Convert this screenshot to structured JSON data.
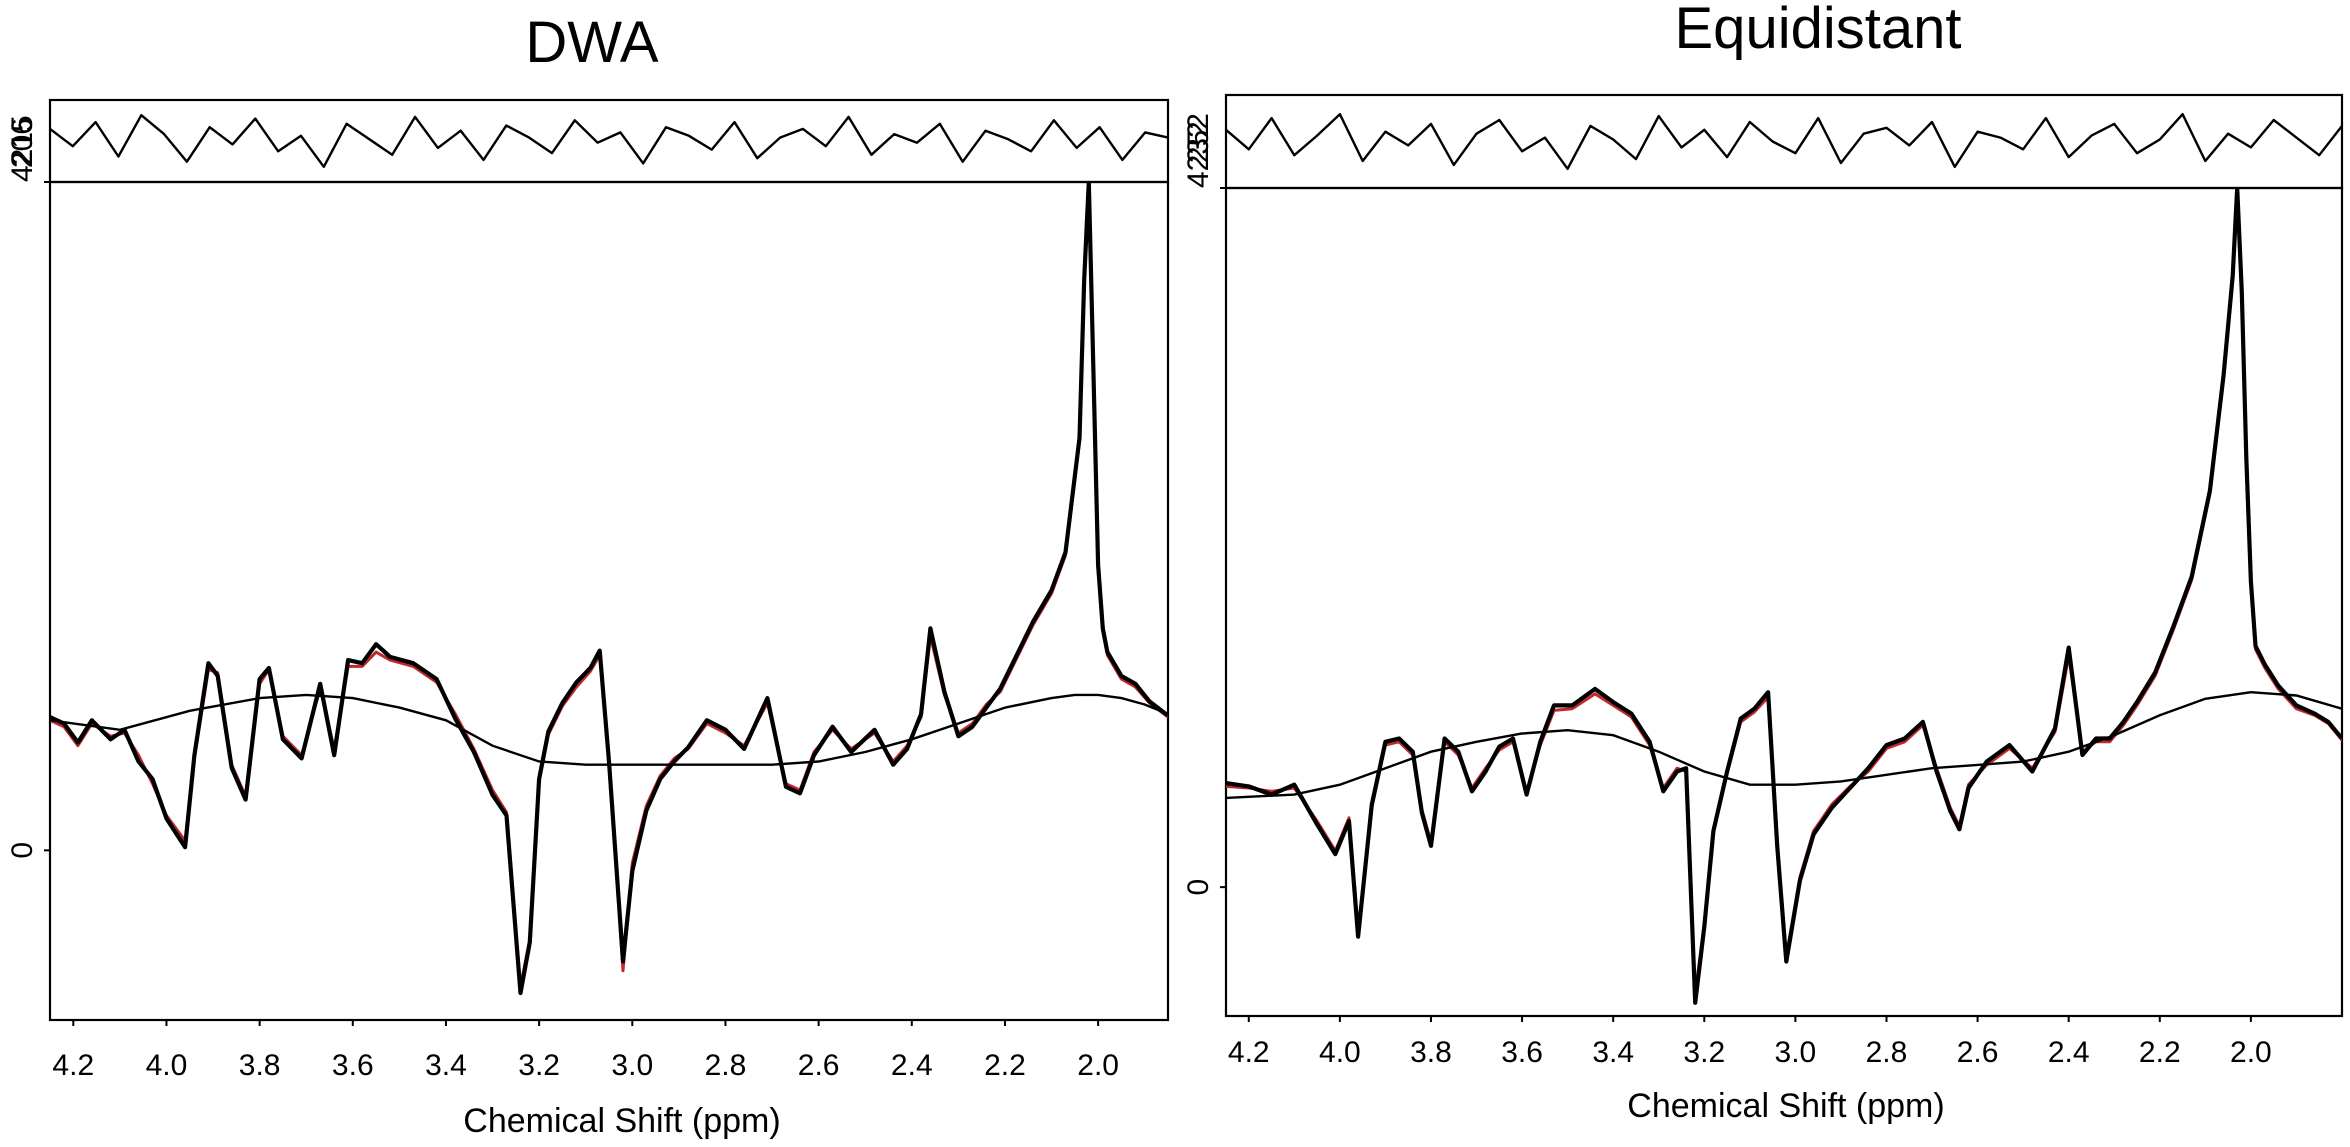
{
  "colors": {
    "background": "#ffffff",
    "data": "#000000",
    "fit": "#c0282d",
    "baseline": "#000000"
  },
  "chart_data": [
    {
      "type": "line",
      "title": "DWA",
      "xlabel": "Chemical Shift (ppm)",
      "xlim": [
        4.25,
        1.85
      ],
      "xticks": [
        4.2,
        4.0,
        3.8,
        3.6,
        3.4,
        3.2,
        3.0,
        2.8,
        2.6,
        2.4,
        2.2,
        2.0
      ],
      "xtick_labels": [
        "4.2",
        "4.0",
        "3.8",
        "3.6",
        "3.4",
        "3.2",
        "3.0",
        "2.8",
        "2.6",
        "2.4",
        "2.2",
        "2.0"
      ],
      "ylim": [
        -1070,
        4215
      ],
      "yticks": [
        0,
        4215
      ],
      "ytick_labels": [
        "0",
        "4215"
      ],
      "residual_tick_label": "206",
      "series": [
        {
          "kind": "spectrum",
          "x": [
            4.25,
            4.22,
            4.19,
            4.16,
            4.12,
            4.09,
            4.06,
            4.03,
            4.0,
            3.96,
            3.94,
            3.91,
            3.89,
            3.86,
            3.83,
            3.8,
            3.78,
            3.75,
            3.71,
            3.67,
            3.64,
            3.61,
            3.58,
            3.55,
            3.52,
            3.47,
            3.42,
            3.38,
            3.34,
            3.3,
            3.27,
            3.24,
            3.22,
            3.2,
            3.18,
            3.15,
            3.12,
            3.09,
            3.07,
            3.05,
            3.02,
            3.0,
            2.97,
            2.94,
            2.91,
            2.88,
            2.84,
            2.8,
            2.76,
            2.71,
            2.67,
            2.64,
            2.61,
            2.57,
            2.53,
            2.48,
            2.44,
            2.41,
            2.38,
            2.36,
            2.33,
            2.3,
            2.27,
            2.24,
            2.21,
            2.18,
            2.14,
            2.1,
            2.07,
            2.04,
            2.03,
            2.02,
            2.01,
            2.0,
            1.99,
            1.98,
            1.95,
            1.92,
            1.89,
            1.85
          ],
          "y": [
            840,
            800,
            680,
            820,
            700,
            760,
            560,
            450,
            200,
            20,
            600,
            1180,
            1100,
            520,
            320,
            1080,
            1150,
            700,
            580,
            1050,
            600,
            1200,
            1180,
            1300,
            1220,
            1180,
            1080,
            830,
            620,
            350,
            220,
            -900,
            -580,
            450,
            750,
            930,
            1060,
            1150,
            1260,
            560,
            -700,
            -130,
            250,
            450,
            560,
            650,
            820,
            760,
            640,
            960,
            400,
            360,
            600,
            780,
            620,
            760,
            540,
            640,
            860,
            1400,
            1000,
            720,
            780,
            900,
            1020,
            1200,
            1440,
            1640,
            1880,
            2600,
            3600,
            4215,
            3000,
            1800,
            1400,
            1250,
            1100,
            1050,
            940,
            850
          ]
        },
        {
          "kind": "fit",
          "x": [
            4.25,
            4.22,
            4.19,
            4.16,
            4.12,
            4.09,
            4.06,
            4.03,
            4.0,
            3.96,
            3.94,
            3.91,
            3.89,
            3.86,
            3.83,
            3.8,
            3.78,
            3.75,
            3.71,
            3.67,
            3.64,
            3.61,
            3.58,
            3.55,
            3.52,
            3.47,
            3.42,
            3.38,
            3.34,
            3.3,
            3.27,
            3.24,
            3.22,
            3.2,
            3.18,
            3.15,
            3.12,
            3.09,
            3.07,
            3.05,
            3.02,
            3.0,
            2.97,
            2.94,
            2.91,
            2.88,
            2.84,
            2.8,
            2.76,
            2.71,
            2.67,
            2.64,
            2.61,
            2.57,
            2.53,
            2.48,
            2.44,
            2.41,
            2.38,
            2.36,
            2.33,
            2.3,
            2.27,
            2.24,
            2.21,
            2.18,
            2.14,
            2.1,
            2.07,
            2.04,
            2.03,
            2.02,
            2.01,
            2.0,
            1.99,
            1.98,
            1.95,
            1.92,
            1.89,
            1.85
          ],
          "y": [
            820,
            780,
            660,
            800,
            720,
            740,
            600,
            420,
            220,
            60,
            580,
            1140,
            1120,
            540,
            340,
            1050,
            1140,
            720,
            600,
            1020,
            640,
            1160,
            1160,
            1250,
            1200,
            1160,
            1060,
            860,
            640,
            380,
            240,
            -860,
            -560,
            430,
            730,
            910,
            1030,
            1130,
            1230,
            580,
            -760,
            -80,
            280,
            470,
            580,
            640,
            800,
            740,
            660,
            930,
            420,
            380,
            620,
            760,
            640,
            740,
            560,
            660,
            840,
            1350,
            980,
            740,
            800,
            920,
            1000,
            1180,
            1420,
            1620,
            1860,
            2580,
            3580,
            4190,
            2980,
            1780,
            1380,
            1230,
            1080,
            1030,
            930,
            840
          ]
        },
        {
          "kind": "baseline",
          "x": [
            4.25,
            4.1,
            3.95,
            3.8,
            3.7,
            3.6,
            3.5,
            3.4,
            3.3,
            3.2,
            3.1,
            3.0,
            2.9,
            2.8,
            2.7,
            2.6,
            2.5,
            2.4,
            2.3,
            2.2,
            2.1,
            2.05,
            2.0,
            1.95,
            1.9,
            1.85
          ],
          "y": [
            820,
            760,
            880,
            960,
            980,
            960,
            900,
            820,
            660,
            560,
            540,
            540,
            540,
            540,
            540,
            560,
            620,
            700,
            800,
            900,
            960,
            980,
            980,
            960,
            920,
            860
          ]
        },
        {
          "kind": "residual",
          "y": [
            0.35,
            -0.15,
            0.55,
            -0.45,
            0.75,
            0.2,
            -0.6,
            0.4,
            -0.1,
            0.65,
            -0.3,
            0.15,
            -0.75,
            0.5,
            0.05,
            -0.4,
            0.7,
            -0.2,
            0.3,
            -0.55,
            0.45,
            0.1,
            -0.35,
            0.6,
            -0.05,
            0.25,
            -0.65,
            0.4,
            0.15,
            -0.25,
            0.55,
            -0.5,
            0.1,
            0.35,
            -0.15,
            0.7,
            -0.4,
            0.2,
            -0.05,
            0.5,
            -0.6,
            0.3,
            0.05,
            -0.3,
            0.6,
            -0.2,
            0.4,
            -0.55,
            0.25,
            0.1
          ]
        }
      ]
    },
    {
      "type": "line",
      "title": "Equidistant",
      "xlabel": "Chemical Shift (ppm)",
      "xlim": [
        4.25,
        1.8
      ],
      "xticks": [
        4.2,
        4.0,
        3.8,
        3.6,
        3.4,
        3.2,
        3.0,
        2.8,
        2.6,
        2.4,
        2.2,
        2.0
      ],
      "xtick_labels": [
        "4.2",
        "4.0",
        "3.8",
        "3.6",
        "3.4",
        "3.2",
        "3.0",
        "2.8",
        "2.6",
        "2.4",
        "2.2",
        "2.0"
      ],
      "ylim": [
        -780,
        4232
      ],
      "yticks": [
        0,
        4232
      ],
      "ytick_labels": [
        "0",
        "4232"
      ],
      "residual_tick_label": "252",
      "series": [
        {
          "kind": "spectrum",
          "x": [
            4.25,
            4.2,
            4.15,
            4.1,
            4.05,
            4.01,
            3.98,
            3.96,
            3.93,
            3.9,
            3.87,
            3.84,
            3.82,
            3.8,
            3.77,
            3.74,
            3.71,
            3.68,
            3.65,
            3.62,
            3.59,
            3.56,
            3.53,
            3.49,
            3.44,
            3.4,
            3.36,
            3.32,
            3.29,
            3.26,
            3.24,
            3.22,
            3.2,
            3.18,
            3.15,
            3.12,
            3.09,
            3.06,
            3.04,
            3.02,
            2.99,
            2.96,
            2.92,
            2.88,
            2.84,
            2.8,
            2.76,
            2.72,
            2.69,
            2.66,
            2.64,
            2.62,
            2.58,
            2.53,
            2.48,
            2.43,
            2.4,
            2.37,
            2.34,
            2.31,
            2.28,
            2.25,
            2.21,
            2.17,
            2.13,
            2.09,
            2.06,
            2.04,
            2.03,
            2.02,
            2.01,
            2.0,
            1.99,
            1.97,
            1.94,
            1.9,
            1.86,
            1.83,
            1.8
          ],
          "y": [
            630,
            610,
            560,
            620,
            380,
            200,
            400,
            -300,
            500,
            880,
            900,
            820,
            450,
            250,
            900,
            820,
            580,
            700,
            850,
            900,
            560,
            880,
            1100,
            1100,
            1200,
            1120,
            1050,
            880,
            580,
            700,
            720,
            -700,
            -240,
            340,
            700,
            1020,
            1080,
            1180,
            250,
            -450,
            40,
            320,
            480,
            600,
            720,
            860,
            900,
            1000,
            700,
            460,
            350,
            600,
            760,
            860,
            700,
            960,
            1450,
            800,
            900,
            900,
            1000,
            1120,
            1300,
            1580,
            1880,
            2400,
            3100,
            3700,
            4232,
            3600,
            2600,
            1850,
            1460,
            1350,
            1220,
            1100,
            1050,
            1000,
            900
          ]
        },
        {
          "kind": "fit",
          "x": [
            4.25,
            4.2,
            4.15,
            4.1,
            4.05,
            4.01,
            3.98,
            3.96,
            3.93,
            3.9,
            3.87,
            3.84,
            3.82,
            3.8,
            3.77,
            3.74,
            3.71,
            3.68,
            3.65,
            3.62,
            3.59,
            3.56,
            3.53,
            3.49,
            3.44,
            3.4,
            3.36,
            3.32,
            3.29,
            3.26,
            3.24,
            3.22,
            3.2,
            3.18,
            3.15,
            3.12,
            3.09,
            3.06,
            3.04,
            3.02,
            2.99,
            2.96,
            2.92,
            2.88,
            2.84,
            2.8,
            2.76,
            2.72,
            2.69,
            2.66,
            2.64,
            2.62,
            2.58,
            2.53,
            2.48,
            2.43,
            2.4,
            2.37,
            2.34,
            2.31,
            2.28,
            2.25,
            2.21,
            2.17,
            2.13,
            2.09,
            2.06,
            2.04,
            2.03,
            2.02,
            2.01,
            2.0,
            1.99,
            1.97,
            1.94,
            1.9,
            1.86,
            1.83,
            1.8
          ],
          "y": [
            610,
            600,
            580,
            600,
            400,
            220,
            420,
            -260,
            480,
            860,
            880,
            800,
            470,
            270,
            880,
            800,
            600,
            720,
            830,
            880,
            580,
            860,
            1070,
            1080,
            1170,
            1100,
            1030,
            860,
            600,
            720,
            700,
            -650,
            -220,
            330,
            690,
            1000,
            1060,
            1150,
            270,
            -420,
            60,
            340,
            500,
            610,
            700,
            840,
            880,
            980,
            720,
            480,
            370,
            620,
            740,
            840,
            720,
            940,
            1400,
            820,
            880,
            880,
            980,
            1100,
            1280,
            1560,
            1860,
            2380,
            3080,
            3680,
            4200,
            3580,
            2580,
            1830,
            1440,
            1330,
            1200,
            1080,
            1040,
            990,
            890
          ]
        },
        {
          "kind": "baseline",
          "x": [
            4.25,
            4.1,
            4.0,
            3.9,
            3.8,
            3.7,
            3.6,
            3.5,
            3.4,
            3.3,
            3.2,
            3.1,
            3.0,
            2.9,
            2.8,
            2.7,
            2.6,
            2.5,
            2.4,
            2.3,
            2.2,
            2.1,
            2.0,
            1.9,
            1.8
          ],
          "y": [
            540,
            560,
            620,
            720,
            820,
            880,
            930,
            950,
            920,
            820,
            700,
            620,
            620,
            640,
            680,
            720,
            740,
            760,
            820,
            920,
            1040,
            1140,
            1180,
            1160,
            1080
          ]
        },
        {
          "kind": "residual",
          "y": [
            0.3,
            -0.2,
            0.6,
            -0.35,
            0.15,
            0.7,
            -0.5,
            0.25,
            -0.1,
            0.45,
            -0.6,
            0.2,
            0.55,
            -0.25,
            0.1,
            -0.7,
            0.4,
            0.05,
            -0.45,
            0.65,
            -0.15,
            0.3,
            -0.4,
            0.5,
            0.0,
            -0.3,
            0.6,
            -0.55,
            0.2,
            0.35,
            -0.1,
            0.5,
            -0.65,
            0.25,
            0.1,
            -0.2,
            0.6,
            -0.4,
            0.15,
            0.45,
            -0.3,
            0.05,
            0.7,
            -0.5,
            0.2,
            -0.15,
            0.55,
            0.1,
            -0.35,
            0.4
          ]
        }
      ]
    }
  ]
}
